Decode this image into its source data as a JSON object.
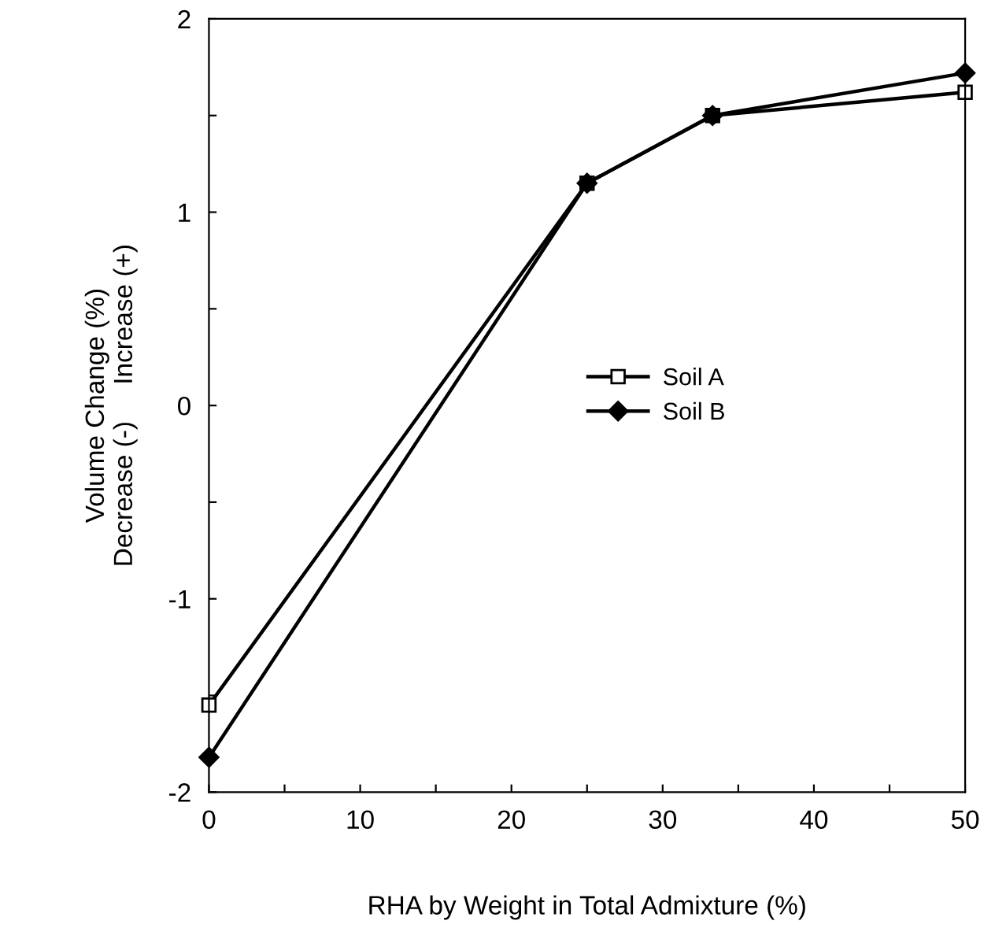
{
  "chart_data": {
    "type": "line",
    "xlabel": "RHA by Weight in Total Admixture (%)",
    "ylabel": "Volume Change (%)\nDecrease (-)     Increase (+)",
    "x": [
      0,
      25,
      33.3,
      50
    ],
    "series": [
      {
        "name": "Soil A",
        "color": "#000000",
        "marker": "square",
        "values": [
          -1.55,
          1.15,
          1.5,
          1.62
        ]
      },
      {
        "name": "Soil B",
        "color": "#000000",
        "marker": "diamond",
        "values": [
          -1.82,
          1.15,
          1.5,
          1.72
        ]
      }
    ],
    "xlim": [
      0,
      50
    ],
    "xticks": [
      0,
      {
        "value": 5,
        "label": null
      },
      10,
      {
        "value": 15,
        "label": null
      },
      20,
      {
        "value": 25,
        "label": null
      },
      30,
      {
        "value": 35,
        "label": null
      },
      40,
      {
        "value": 45,
        "label": null
      },
      50
    ],
    "ylim": [
      -2,
      2
    ],
    "yticks": [
      -2,
      {
        "value": -1.5,
        "label": null
      },
      -1,
      {
        "value": -0.5,
        "label": null
      },
      0,
      {
        "value": 0.5,
        "label": null
      },
      1,
      {
        "value": 1.5,
        "label": null
      },
      2
    ],
    "grid": false,
    "legend": "right",
    "line_style": "solid"
  }
}
